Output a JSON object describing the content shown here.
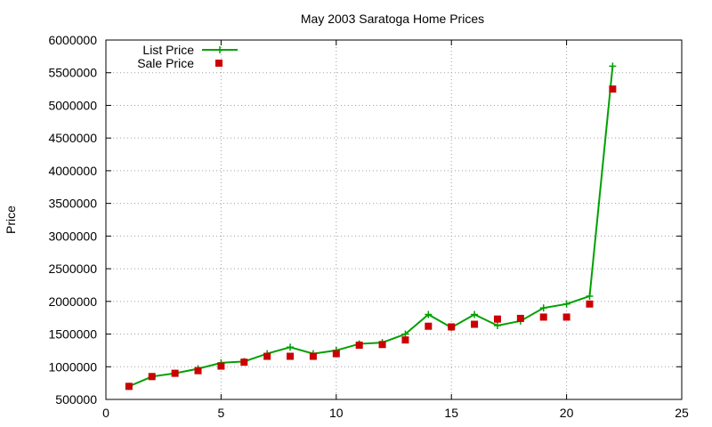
{
  "chart_data": {
    "type": "line",
    "title": "May 2003 Saratoga Home Prices",
    "xlabel": "",
    "ylabel": "Price",
    "xlim": [
      0,
      25
    ],
    "ylim": [
      500000,
      6000000
    ],
    "xticks": [
      0,
      5,
      10,
      15,
      20,
      25
    ],
    "yticks": [
      500000,
      1000000,
      1500000,
      2000000,
      2500000,
      3000000,
      3500000,
      4000000,
      4500000,
      5000000,
      5500000,
      6000000
    ],
    "grid": true,
    "legend_position": "top-left",
    "series": [
      {
        "name": "List Price",
        "style": "line-plus",
        "color": "#00a000",
        "x": [
          1,
          2,
          3,
          4,
          5,
          6,
          7,
          8,
          9,
          10,
          11,
          12,
          13,
          14,
          15,
          16,
          17,
          18,
          19,
          20,
          21,
          22
        ],
        "y": [
          700000,
          850000,
          900000,
          970000,
          1060000,
          1080000,
          1200000,
          1300000,
          1200000,
          1250000,
          1350000,
          1370000,
          1500000,
          1800000,
          1600000,
          1800000,
          1630000,
          1700000,
          1900000,
          1960000,
          2080000,
          5600000
        ]
      },
      {
        "name": "Sale Price",
        "style": "square-points",
        "color": "#cc0000",
        "x": [
          1,
          2,
          3,
          4,
          5,
          6,
          7,
          8,
          9,
          10,
          11,
          12,
          13,
          14,
          15,
          16,
          17,
          18,
          19,
          20,
          21,
          22
        ],
        "y": [
          700000,
          850000,
          900000,
          940000,
          1010000,
          1070000,
          1160000,
          1160000,
          1160000,
          1200000,
          1330000,
          1340000,
          1410000,
          1620000,
          1610000,
          1650000,
          1730000,
          1740000,
          1760000,
          1760000,
          1960000,
          5250000
        ]
      }
    ]
  }
}
